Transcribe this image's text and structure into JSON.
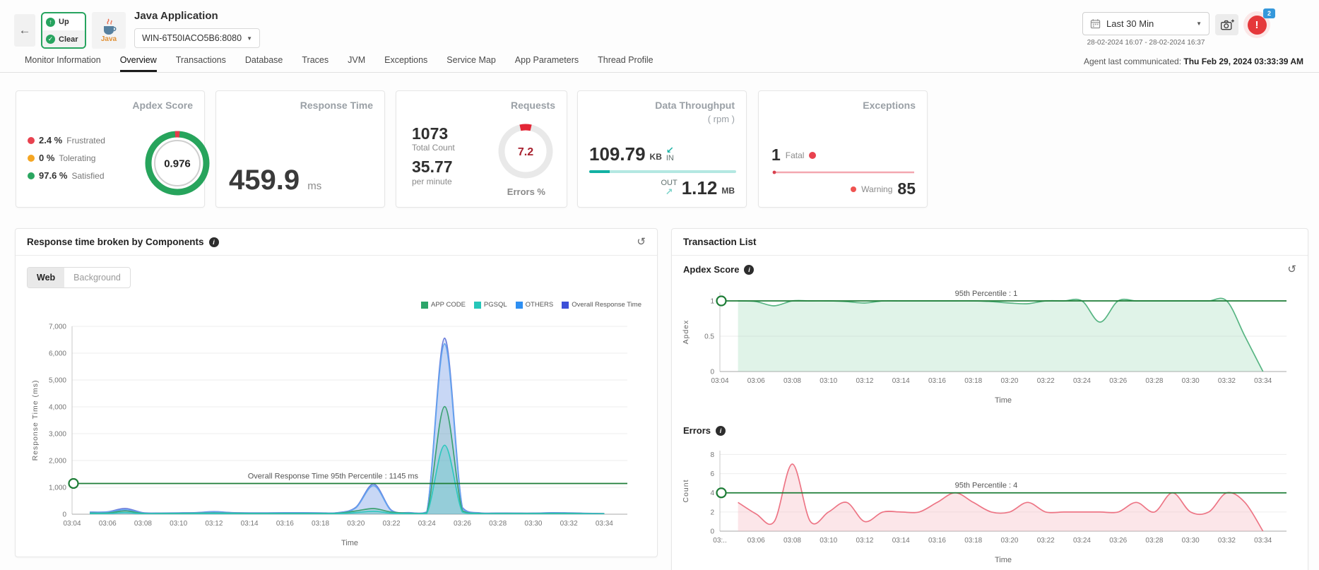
{
  "header": {
    "back_label": "←",
    "status_up": "Up",
    "status_clear": "Clear",
    "java_icon_label": "Java",
    "app_title": "Java Application",
    "host_selector": "WIN-6T50IACO5B6:8080",
    "time_range": "Last 30 Min",
    "time_range_detail": "28-02-2024 16:07 - 28-02-2024 16:37",
    "alert_count": "2",
    "agent_label": "Agent last communicated: ",
    "agent_value": "Thu Feb 29, 2024 03:33:39 AM"
  },
  "tabs": {
    "active": "Overview",
    "items": [
      "Monitor Information",
      "Overview",
      "Transactions",
      "Database",
      "Traces",
      "JVM",
      "Exceptions",
      "Service Map",
      "App Parameters",
      "Thread Profile"
    ]
  },
  "kpi": {
    "apdex": {
      "title": "Apdex Score",
      "score": "0.976",
      "rows": [
        {
          "pct": "2.4 %",
          "label": "Frustrated",
          "color": "#e8424f"
        },
        {
          "pct": "0 %",
          "label": "Tolerating",
          "color": "#f5a623"
        },
        {
          "pct": "97.6 %",
          "label": "Satisfied",
          "color": "#2aa660"
        }
      ],
      "frustrated_value": 2.4,
      "ring_color": "#27a45c",
      "arc_color": "#e43b4a"
    },
    "response_time": {
      "title": "Response Time",
      "value": "459.9",
      "unit": "ms"
    },
    "requests": {
      "title": "Requests",
      "total": "1073",
      "total_label": "Total Count",
      "per_minute": "35.77",
      "per_minute_label": "per minute",
      "errors_pct": "7.2",
      "errors_pct_value": 7.2,
      "errors_label": "Errors %",
      "ring_color": "#e9e9e9",
      "arc_color": "#e32636"
    },
    "throughput": {
      "title": "Data Throughput",
      "subtitle": "( rpm )",
      "in_value": "109.79",
      "in_unit": "KB",
      "in_arrow": "↙",
      "in_label": "IN",
      "out_label": "OUT",
      "out_arrow": "↗",
      "out_value": "1.12",
      "out_unit": "MB",
      "bar_color": "#12b1a3"
    },
    "exceptions": {
      "title": "Exceptions",
      "fatal_count": "1",
      "fatal_label": "Fatal",
      "warning_label": "Warning",
      "warning_count": "85",
      "fatal_dot_color": "#e8424f",
      "warning_dot_color": "#ef5350",
      "spark_color": "#f3a7b0"
    }
  },
  "left_panel": {
    "title": "Response time broken by Components",
    "toggle_web": "Web",
    "toggle_background": "Background",
    "history_icon": "↺",
    "legend": [
      {
        "label": "APP CODE",
        "color": "#2da56a"
      },
      {
        "label": "PGSQL",
        "color": "#26c6b9"
      },
      {
        "label": "OTHERS",
        "color": "#2e8ff2"
      },
      {
        "label": "Overall Response Time",
        "color": "#3d50d8"
      }
    ]
  },
  "right_panel": {
    "title": "Transaction List",
    "apdex_title": "Apdex Score",
    "errors_title": "Errors",
    "history_icon": "↺"
  },
  "chart_data": [
    {
      "id": "response_components",
      "type": "area",
      "title": "Response time broken by Components",
      "xlabel": "Time",
      "ylabel": "Response Time (ms)",
      "xlim": [
        4,
        35.3
      ],
      "ylim": [
        0,
        7000
      ],
      "yticks": [
        0,
        1000,
        2000,
        3000,
        4000,
        5000,
        6000,
        7000
      ],
      "ytick_labels": [
        "0",
        "1,000",
        "2,000",
        "3,000",
        "4,000",
        "5,000",
        "6,000",
        "7,000"
      ],
      "x_tick_values": [
        4,
        6,
        8,
        10,
        12,
        14,
        16,
        18,
        20,
        22,
        24,
        26,
        28,
        30,
        32,
        34
      ],
      "x_tick_labels": [
        "03:04",
        "03:06",
        "03:08",
        "03:10",
        "03:12",
        "03:14",
        "03:16",
        "03:18",
        "03:20",
        "03:22",
        "03:24",
        "03:26",
        "03:28",
        "03:30",
        "03:32",
        "03:34"
      ],
      "x": [
        5,
        6,
        7,
        8,
        9,
        10,
        11,
        12,
        13,
        14,
        15,
        16,
        17,
        18,
        19,
        20,
        21,
        22,
        23,
        24,
        25,
        26,
        27,
        28,
        29,
        30,
        31,
        32,
        33,
        34
      ],
      "series": [
        {
          "name": "Overall Response Time",
          "color": "#6a7ddb",
          "fill_opacity": 0.22,
          "values": [
            80,
            90,
            215,
            55,
            45,
            50,
            60,
            95,
            60,
            50,
            50,
            55,
            55,
            50,
            60,
            260,
            1120,
            150,
            60,
            90,
            6560,
            250,
            50,
            45,
            40,
            40,
            55,
            50,
            35,
            25
          ]
        },
        {
          "name": "OTHERS",
          "color": "#63a4ef",
          "fill_opacity": 0.18,
          "values": [
            70,
            80,
            165,
            48,
            40,
            45,
            55,
            88,
            55,
            45,
            45,
            50,
            50,
            45,
            55,
            240,
            1060,
            130,
            52,
            80,
            6350,
            210,
            45,
            40,
            36,
            36,
            50,
            45,
            30,
            20
          ]
        },
        {
          "name": "APP CODE",
          "color": "#3ba273",
          "fill_opacity": 0.15,
          "values": [
            40,
            45,
            120,
            30,
            26,
            30,
            36,
            46,
            36,
            30,
            30,
            30,
            30,
            30,
            36,
            120,
            210,
            80,
            36,
            50,
            4010,
            130,
            30,
            26,
            26,
            26,
            30,
            30,
            20,
            15
          ]
        },
        {
          "name": "PGSQL",
          "color": "#2ec7be",
          "fill_opacity": 0.22,
          "values": [
            20,
            24,
            60,
            16,
            14,
            16,
            20,
            26,
            20,
            16,
            16,
            16,
            16,
            16,
            20,
            60,
            110,
            40,
            20,
            30,
            2570,
            80,
            16,
            14,
            14,
            14,
            16,
            16,
            10,
            8
          ]
        }
      ],
      "percentile_line": {
        "value": 1145,
        "label": "Overall Response Time 95th Percentile : 1145 ms",
        "color": "#1e7d37"
      }
    },
    {
      "id": "apdex_score",
      "type": "area",
      "title": "Apdex Score",
      "xlabel": "Time",
      "ylabel": "Apdex",
      "xlim": [
        4,
        35.3
      ],
      "ylim": [
        0,
        1.12
      ],
      "yticks": [
        0,
        0.5,
        1
      ],
      "ytick_labels": [
        "0",
        "0.5",
        "1"
      ],
      "x_tick_values": [
        4,
        6,
        8,
        10,
        12,
        14,
        16,
        18,
        20,
        22,
        24,
        26,
        28,
        30,
        32,
        34
      ],
      "x_tick_labels": [
        "03:04",
        "03:06",
        "03:08",
        "03:10",
        "03:12",
        "03:14",
        "03:16",
        "03:18",
        "03:20",
        "03:22",
        "03:24",
        "03:26",
        "03:28",
        "03:30",
        "03:32",
        "03:34"
      ],
      "x": [
        5,
        6,
        7,
        8,
        9,
        10,
        11,
        12,
        13,
        14,
        15,
        16,
        17,
        18,
        19,
        20,
        21,
        22,
        23,
        24,
        25,
        26,
        27,
        28,
        29,
        30,
        31,
        32,
        33,
        34
      ],
      "series": [
        {
          "name": "Apdex",
          "color": "#58b583",
          "fill_opacity": 0.28,
          "fill_color": "#8fd4ad",
          "values": [
            1,
            0.99,
            0.93,
            1,
            1,
            1,
            0.99,
            0.97,
            1,
            1,
            1,
            1,
            1,
            1,
            0.99,
            0.97,
            0.96,
            1,
            1,
            1,
            0.7,
            1,
            1,
            1,
            1,
            1,
            1,
            1,
            0.5,
            0
          ]
        }
      ],
      "percentile_line": {
        "value": 1,
        "label": "95th Percentile : 1",
        "color": "#1e7d37"
      }
    },
    {
      "id": "errors",
      "type": "area",
      "title": "Errors",
      "xlabel": "Time",
      "ylabel": "Count",
      "xlim": [
        4,
        35.3
      ],
      "ylim": [
        0,
        8.4
      ],
      "yticks": [
        0,
        2,
        4,
        6,
        8
      ],
      "ytick_labels": [
        "0",
        "2",
        "4",
        "6",
        "8"
      ],
      "x_tick_values": [
        4,
        6,
        8,
        10,
        12,
        14,
        16,
        18,
        20,
        22,
        24,
        26,
        28,
        30,
        32,
        34
      ],
      "x_tick_labels": [
        "03:..",
        "03:06",
        "03:08",
        "03:10",
        "03:12",
        "03:14",
        "03:16",
        "03:18",
        "03:20",
        "03:22",
        "03:24",
        "03:26",
        "03:28",
        "03:30",
        "03:32",
        "03:34"
      ],
      "x": [
        5,
        6,
        7,
        8,
        9,
        10,
        11,
        12,
        13,
        14,
        15,
        16,
        17,
        18,
        19,
        20,
        21,
        22,
        23,
        24,
        25,
        26,
        27,
        28,
        29,
        30,
        31,
        32,
        33,
        34
      ],
      "series": [
        {
          "name": "Errors",
          "color": "#ed7585",
          "fill_opacity": 0.35,
          "fill_color": "#f5b8c0",
          "values": [
            3,
            1.8,
            1,
            7,
            1,
            2,
            3,
            1,
            2,
            2,
            2,
            3,
            4,
            3,
            2,
            2,
            3,
            2,
            2,
            2,
            2,
            2,
            3,
            2,
            4,
            2,
            2,
            4,
            3,
            0
          ]
        }
      ],
      "percentile_line": {
        "value": 4,
        "label": "95th Percentile : 4",
        "color": "#1e7d37"
      }
    }
  ]
}
